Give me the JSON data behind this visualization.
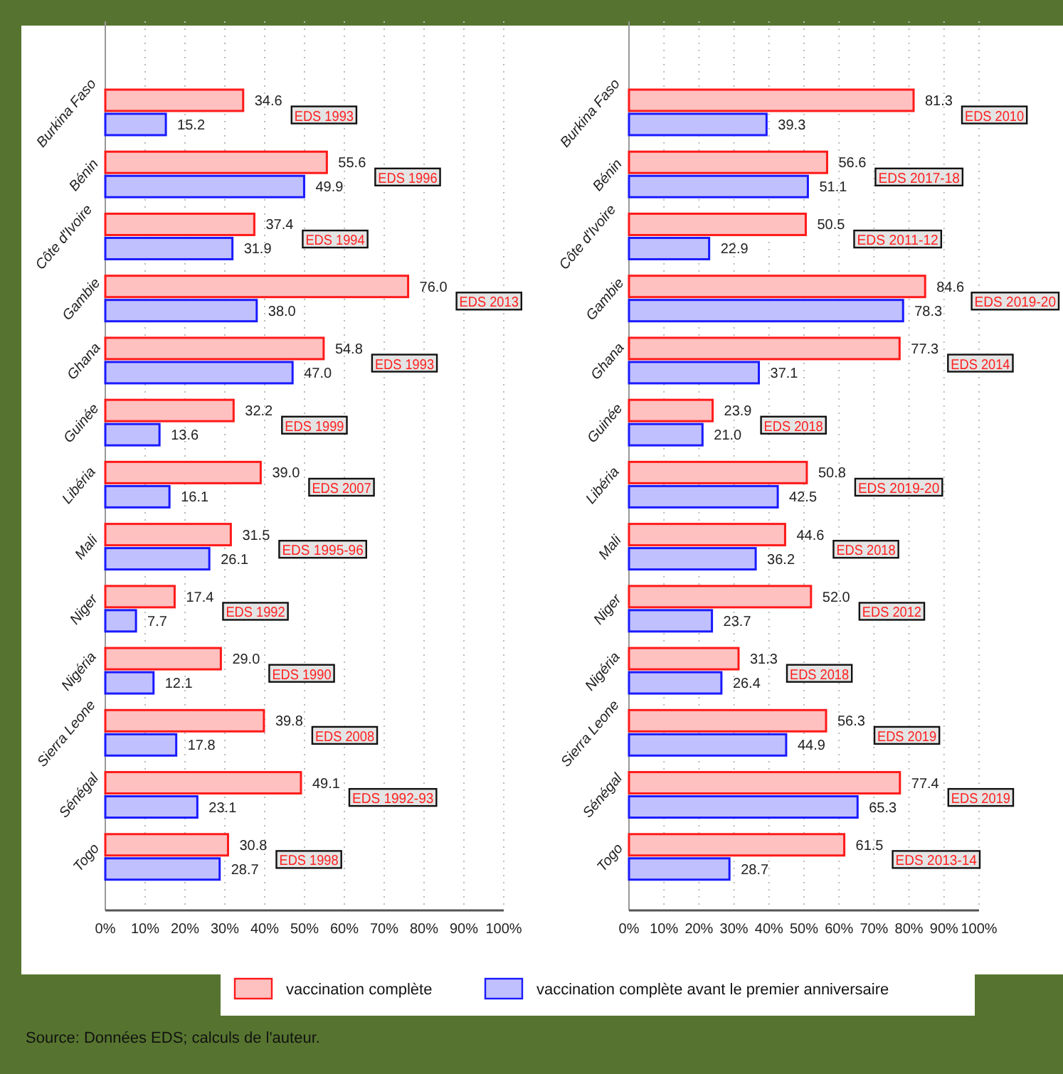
{
  "chart_data": [
    {
      "type": "bar",
      "orientation": "horizontal",
      "categories": [
        "Burkina Faso",
        "Bénin",
        "Côte d'Ivoire",
        "Gambie",
        "Ghana",
        "Guinée",
        "Libéria",
        "Mali",
        "Niger",
        "Nigéria",
        "Sierra Leone",
        "Sénégal",
        "Togo"
      ],
      "series": [
        {
          "name": "vaccination complète",
          "color": "#ffc0c0",
          "values": [
            34.6,
            55.6,
            37.4,
            76.0,
            54.8,
            32.2,
            39.0,
            31.5,
            17.4,
            29.0,
            39.8,
            49.1,
            30.8
          ],
          "value_labels": [
            "34.6",
            "55.6",
            "37.4",
            "76.0",
            "54.8",
            "32.2",
            "39.0",
            "31.5",
            "17.4",
            "29.0",
            "39.8",
            "49.1",
            "30.8"
          ]
        },
        {
          "name": "vaccination complète avant le premier anniversaire",
          "color": "#c0c0ff",
          "values": [
            15.2,
            49.9,
            31.9,
            38.0,
            47.0,
            13.6,
            16.1,
            26.1,
            7.7,
            12.1,
            17.8,
            23.1,
            28.7
          ],
          "value_labels": [
            "15.2",
            "49.9",
            "31.9",
            "38.0",
            "47.0",
            "13.6",
            "16.1",
            "26.1",
            "7.7",
            "12.1",
            "17.8",
            "23.1",
            "28.7"
          ]
        }
      ],
      "xlim": [
        0,
        100
      ],
      "xticks": [
        {
          "value": 0,
          "label": "0%"
        },
        {
          "value": 10,
          "label": "10%"
        },
        {
          "value": 20,
          "label": "20%"
        },
        {
          "value": 30,
          "label": "30%"
        },
        {
          "value": 40,
          "label": "40%"
        },
        {
          "value": 50,
          "label": "50%"
        },
        {
          "value": 60,
          "label": "60%"
        },
        {
          "value": 70,
          "label": "70%"
        },
        {
          "value": 80,
          "label": "80%"
        },
        {
          "value": 90,
          "label": "90%"
        },
        {
          "value": 100,
          "label": "100%"
        }
      ],
      "grid": "x",
      "legend": "bottom",
      "annotations": [
        "EDS 1993",
        "EDS 1996",
        "EDS 1994",
        "EDS 2013",
        "EDS 1993",
        "EDS 1999",
        "EDS 2007",
        "EDS 1995-96",
        "EDS 1992",
        "EDS 1990",
        "EDS 2008",
        "EDS 1992-93",
        "EDS 1998",
        "Source: Données EDS; calculs de l'auteur."
      ]
    },
    {
      "type": "bar",
      "orientation": "horizontal",
      "categories": [
        "Burkina Faso",
        "Bénin",
        "Côte d'Ivoire",
        "Gambie",
        "Ghana",
        "Guinée",
        "Libéria",
        "Mali",
        "Niger",
        "Nigéria",
        "Sierra Leone",
        "Sénégal",
        "Togo"
      ],
      "series": [
        {
          "color": "#ffc0c0",
          "values": [
            81.3,
            56.6,
            50.5,
            84.6,
            77.3,
            23.9,
            50.8,
            44.6,
            52.0,
            31.3,
            56.3,
            77.4,
            61.5
          ],
          "value_labels": [
            "81.3",
            "56.6",
            "50.5",
            "84.6",
            "77.3",
            "23.9",
            "50.8",
            "44.6",
            "52.0",
            "31.3",
            "56.3",
            "77.4",
            "61.5"
          ]
        },
        {
          "color": "#c0c0ff",
          "values": [
            39.3,
            51.1,
            22.9,
            78.3,
            37.1,
            21.0,
            42.5,
            36.2,
            23.7,
            26.4,
            44.9,
            65.3,
            28.7
          ],
          "value_labels": [
            "39.3",
            "51.1",
            "22.9",
            "78.3",
            "37.1",
            "21.0",
            "42.5",
            "36.2",
            "23.7",
            "26.4",
            "44.9",
            "65.3",
            "28.7"
          ]
        }
      ],
      "xlim": [
        0,
        100
      ],
      "xticks": [
        {
          "value": 0,
          "label": "0%"
        },
        {
          "value": 10,
          "label": "10%"
        },
        {
          "value": 20,
          "label": "20%"
        },
        {
          "value": 30,
          "label": "30%"
        },
        {
          "value": 40,
          "label": "40%"
        },
        {
          "value": 50,
          "label": "50%"
        },
        {
          "value": 60,
          "label": "60%"
        },
        {
          "value": 70,
          "label": "70%"
        },
        {
          "value": 80,
          "label": "80%"
        },
        {
          "value": 90,
          "label": "90%"
        },
        {
          "value": 100,
          "label": "100%"
        }
      ],
      "grid": "x",
      "annotations": [
        "EDS 2010",
        "EDS 2017-18",
        "EDS 2011-12",
        "EDS 2019-20",
        "EDS 2014",
        "EDS 2018",
        "EDS 2019-20",
        "EDS 2018",
        "EDS 2012",
        "EDS 2018",
        "EDS 2019",
        "EDS 2019",
        "EDS 2013-14"
      ]
    }
  ]
}
